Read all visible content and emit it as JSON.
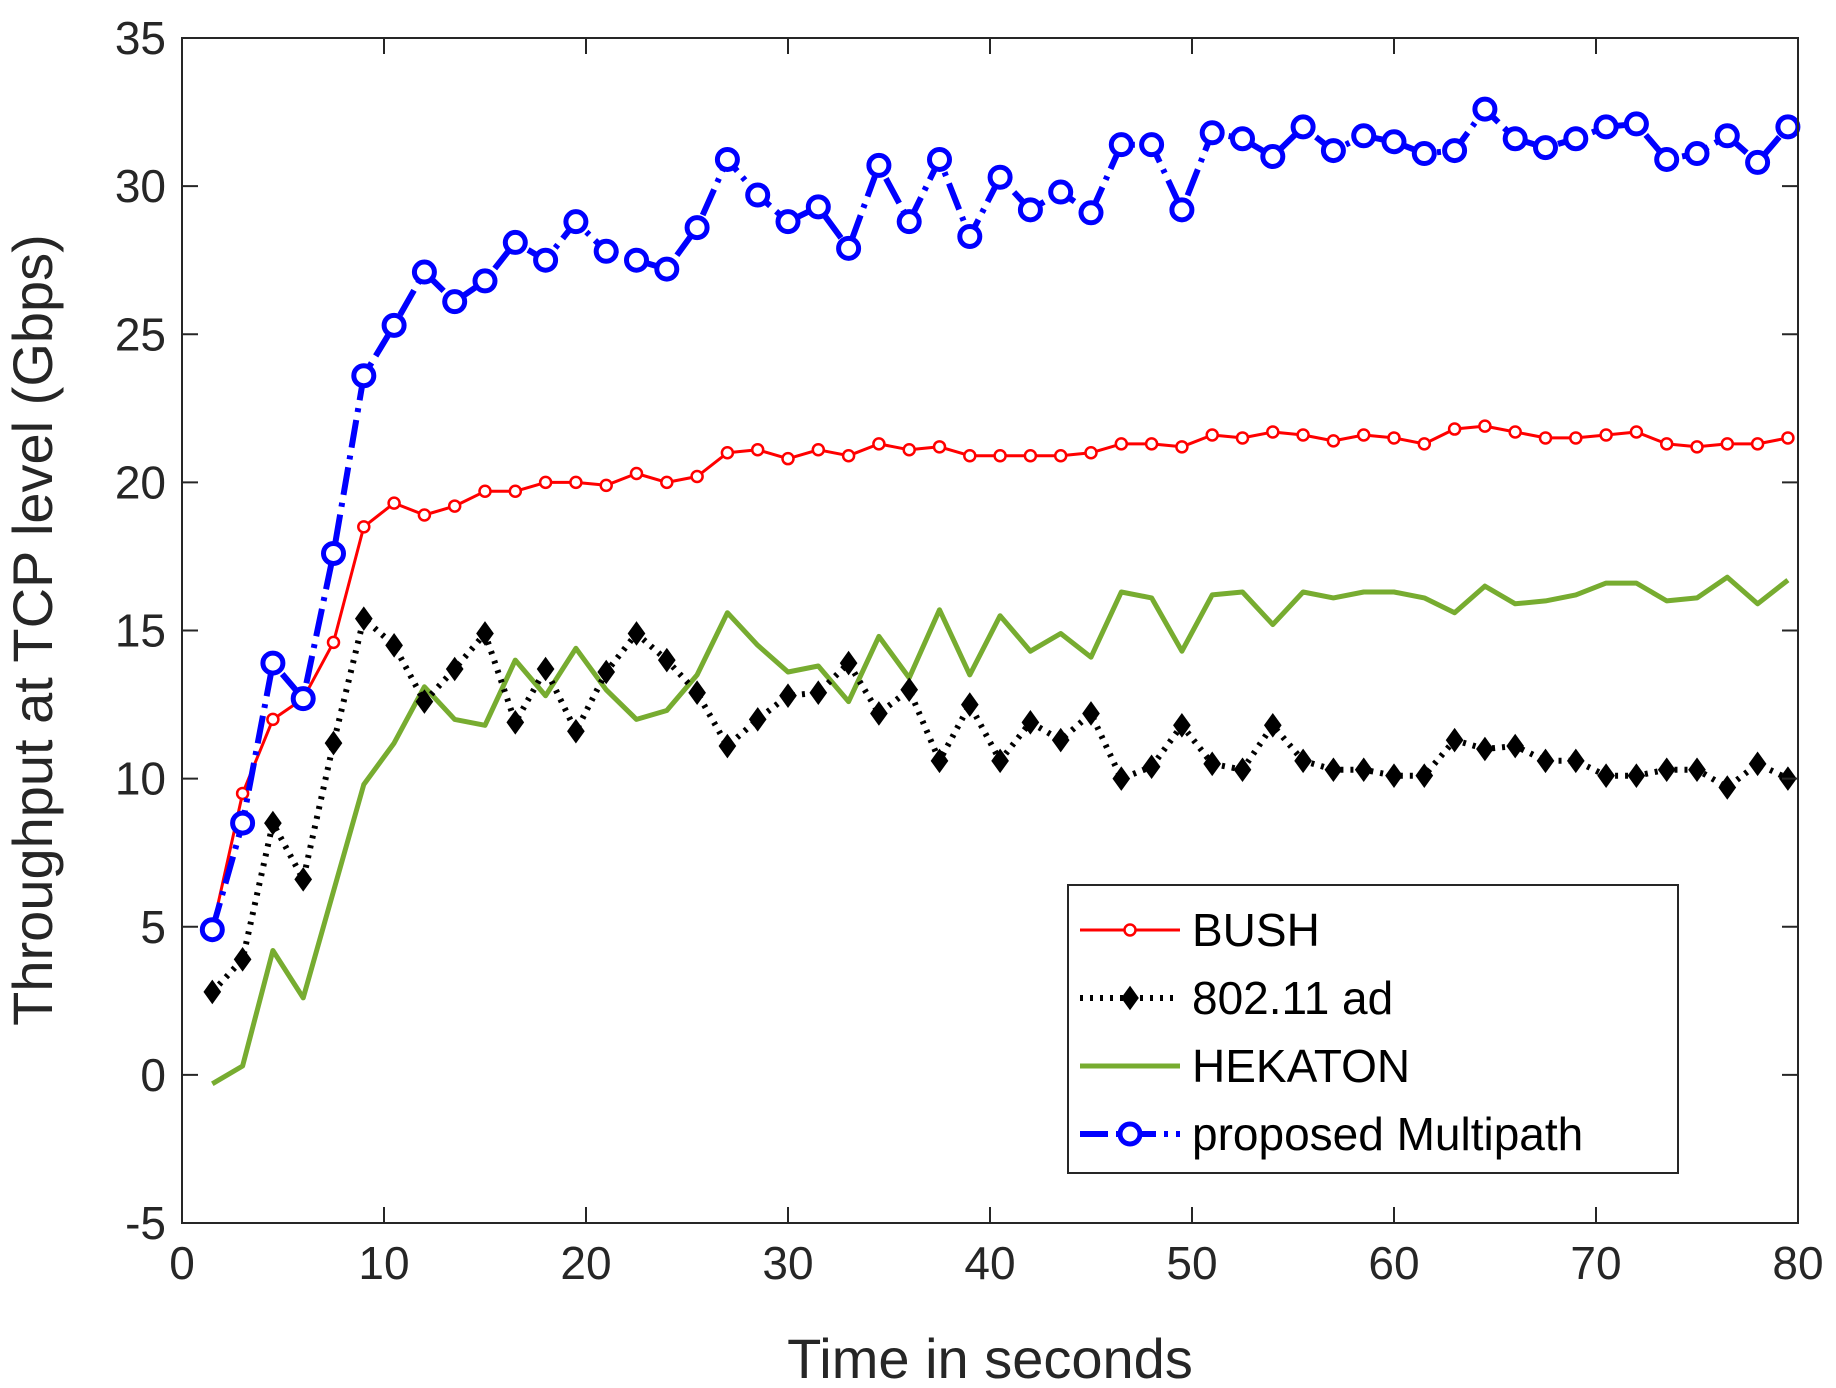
{
  "chart_data": {
    "type": "line",
    "title": "",
    "xlabel": "Time in seconds",
    "ylabel": "Throughput at TCP level (Gbps)",
    "xlim": [
      0,
      80
    ],
    "ylim": [
      -5,
      35
    ],
    "xticks": [
      0,
      10,
      20,
      30,
      40,
      50,
      60,
      70,
      80
    ],
    "yticks": [
      -5,
      0,
      5,
      10,
      15,
      20,
      25,
      30,
      35
    ],
    "grid": false,
    "legend_position": "bottom-right",
    "x": [
      1.5,
      3,
      4.5,
      6,
      7.5,
      9,
      10.5,
      12,
      13.5,
      15,
      16.5,
      18,
      19.5,
      21,
      22.5,
      24,
      25.5,
      27,
      28.5,
      30,
      31.5,
      33,
      34.5,
      36,
      37.5,
      39,
      40.5,
      42,
      43.5,
      45,
      46.5,
      48,
      49.5,
      51,
      52.5,
      54,
      55.5,
      57,
      58.5,
      60,
      61.5,
      63,
      64.5,
      66,
      67.5,
      69,
      70.5,
      72,
      73.5,
      75,
      76.5,
      78,
      79.5
    ],
    "series": [
      {
        "name": "BUSH",
        "color": "#ff0000",
        "line_style": "solid",
        "marker": "circle",
        "values": [
          4.9,
          9.5,
          12.0,
          12.7,
          14.6,
          18.5,
          19.3,
          18.9,
          19.2,
          19.7,
          19.7,
          20.0,
          20.0,
          19.9,
          20.3,
          20.0,
          20.2,
          21.0,
          21.1,
          20.8,
          21.1,
          20.9,
          21.3,
          21.1,
          21.2,
          20.9,
          20.9,
          20.9,
          20.9,
          21.0,
          21.3,
          21.3,
          21.2,
          21.6,
          21.5,
          21.7,
          21.6,
          21.4,
          21.6,
          21.5,
          21.3,
          21.8,
          21.9,
          21.7,
          21.5,
          21.5,
          21.6,
          21.7,
          21.3,
          21.2,
          21.3,
          21.3,
          21.5
        ]
      },
      {
        "name": "802.11 ad",
        "color": "#000000",
        "line_style": "dotted",
        "marker": "diamond",
        "values": [
          2.8,
          3.9,
          8.5,
          6.6,
          11.2,
          15.4,
          14.5,
          12.6,
          13.7,
          14.9,
          11.9,
          13.7,
          11.6,
          13.6,
          14.9,
          14.0,
          12.9,
          11.1,
          12.0,
          12.8,
          12.9,
          13.9,
          12.2,
          13.0,
          10.6,
          12.5,
          10.6,
          11.9,
          11.3,
          12.2,
          10.0,
          10.4,
          11.8,
          10.5,
          10.3,
          11.8,
          10.6,
          10.3,
          10.3,
          10.1,
          10.1,
          11.3,
          11.0,
          11.1,
          10.6,
          10.6,
          10.1,
          10.1,
          10.3,
          10.3,
          9.7,
          10.5,
          10.0
        ]
      },
      {
        "name": "HEKATON",
        "color": "#77ac30",
        "line_style": "solid",
        "marker": "none",
        "values": [
          -0.3,
          0.3,
          4.2,
          2.6,
          6.2,
          9.8,
          11.2,
          13.1,
          12.0,
          11.8,
          14.0,
          12.8,
          14.4,
          13.0,
          12.0,
          12.3,
          13.5,
          15.6,
          14.5,
          13.6,
          13.8,
          12.6,
          14.8,
          13.4,
          15.7,
          13.5,
          15.5,
          14.3,
          14.9,
          14.1,
          16.3,
          16.1,
          14.3,
          16.2,
          16.3,
          15.2,
          16.3,
          16.1,
          16.3,
          16.3,
          16.1,
          15.6,
          16.5,
          15.9,
          16.0,
          16.2,
          16.6,
          16.6,
          16.0,
          16.1,
          16.8,
          15.9,
          16.7
        ]
      },
      {
        "name": "proposed Multipath",
        "color": "#0000ff",
        "line_style": "dashdot",
        "marker": "circle",
        "values": [
          4.9,
          8.5,
          13.9,
          12.7,
          17.6,
          23.6,
          25.3,
          27.1,
          26.1,
          26.8,
          28.1,
          27.5,
          28.8,
          27.8,
          27.5,
          27.2,
          28.6,
          30.9,
          29.7,
          28.8,
          29.3,
          27.9,
          30.7,
          28.8,
          30.9,
          28.3,
          30.3,
          29.2,
          29.8,
          29.1,
          31.4,
          31.4,
          29.2,
          31.8,
          31.6,
          31.0,
          32.0,
          31.2,
          31.7,
          31.5,
          31.1,
          31.2,
          32.6,
          31.6,
          31.3,
          31.6,
          32.0,
          32.1,
          30.9,
          31.1,
          31.7,
          30.8,
          32.0
        ]
      }
    ]
  }
}
